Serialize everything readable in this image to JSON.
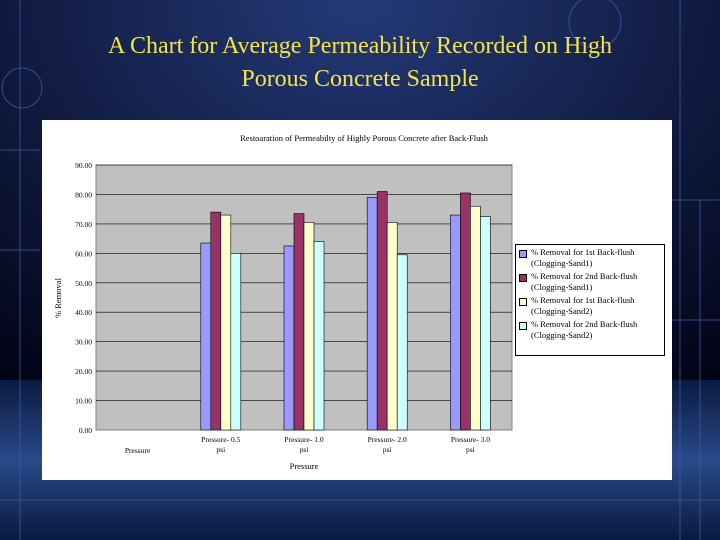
{
  "slide": {
    "title_line1": "A Chart for Average Permeability Recorded on High",
    "title_line2": "Porous Concrete Sample"
  },
  "colors": {
    "title": "#f2e44a",
    "plot_area": "#c0c0c0",
    "background": "#000000"
  },
  "chart_data": {
    "type": "bar",
    "title": "Restoaration of Permeabilty of Highly Porous Concrete after Back-Flush",
    "xlabel": "Pressure",
    "ylabel": "% Removal",
    "ylim": [
      0,
      90
    ],
    "yticks": [
      "0.00",
      "10.00",
      "20.00",
      "30.00",
      "40.00",
      "50.00",
      "60.00",
      "70.00",
      "80.00",
      "90.00"
    ],
    "grid": true,
    "legend_position": "right",
    "categories": [
      [
        "Pressure"
      ],
      [
        "Pressure- 0.5",
        "psi"
      ],
      [
        "Pressure- 1.0",
        "psi"
      ],
      [
        "Pressure- 2.0",
        "psi"
      ],
      [
        "Pressure- 3.0",
        "psi"
      ]
    ],
    "series": [
      {
        "name": "% Removal for  1st Back-flush (Clogging-Sand1)",
        "color": "#9999ff",
        "values": [
          null,
          63.5,
          62.5,
          79,
          73
        ]
      },
      {
        "name": "% Removal for 2nd Back-flush (Clogging-Sand1)",
        "color": "#993366",
        "values": [
          null,
          74,
          73.5,
          81,
          80.5
        ]
      },
      {
        "name": "% Removal for  1st Back-flush (Clogging-Sand2)",
        "color": "#ffffcc",
        "values": [
          null,
          73,
          70.5,
          70.5,
          76
        ]
      },
      {
        "name": "% Removal for 2nd Back-flush (Clogging-Sand2)",
        "color": "#ccffff",
        "values": [
          null,
          60,
          64,
          59.5,
          72.5
        ]
      }
    ]
  }
}
